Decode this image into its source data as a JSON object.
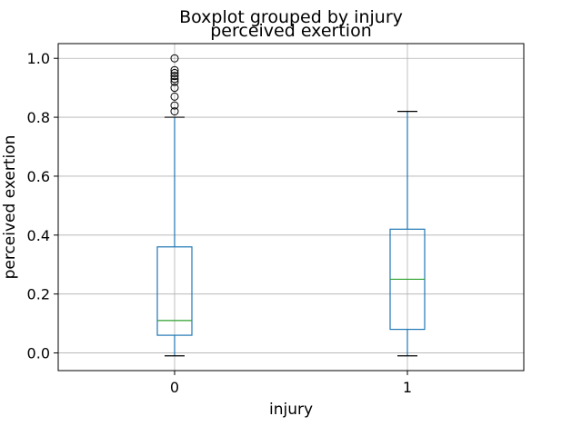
{
  "chart_data": {
    "type": "box",
    "suptitle": "Boxplot grouped by injury",
    "title": "perceived exertion",
    "xlabel": "injury",
    "ylabel": "perceived exertion",
    "categories": [
      "0",
      "1"
    ],
    "ylim": [
      -0.06,
      1.05
    ],
    "yticks": [
      "0.0",
      "0.2",
      "0.4",
      "0.6",
      "0.8",
      "1.0"
    ],
    "grid": true,
    "colors": {
      "box": "#1f77b4",
      "median": "#2ca02c",
      "grid": "#b0b0b0",
      "whisker_cap": "#000000"
    },
    "boxes": [
      {
        "category": "0",
        "whisker_low": -0.01,
        "q1": 0.06,
        "median": 0.11,
        "q3": 0.36,
        "whisker_high": 0.8,
        "outliers": [
          0.82,
          0.84,
          0.87,
          0.9,
          0.92,
          0.93,
          0.94,
          0.95,
          0.96,
          1.0
        ]
      },
      {
        "category": "1",
        "whisker_low": -0.01,
        "q1": 0.08,
        "median": 0.25,
        "q3": 0.42,
        "whisker_high": 0.82,
        "outliers": []
      }
    ]
  }
}
